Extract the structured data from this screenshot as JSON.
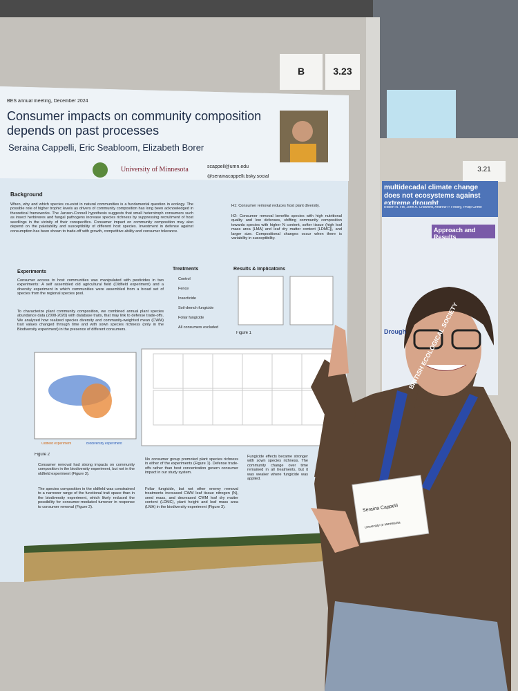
{
  "board_labels": [
    "B",
    "3.23"
  ],
  "poster": {
    "meeting": "BES annual meeting, December 2024",
    "title": "Consumer impacts on community composition depends on past processes",
    "authors": "Seraina Cappelli, Eric Seabloom, Elizabeth Borer",
    "university": "University of Minnesota",
    "contact": [
      "scappell@umn.edu",
      "@serainacappelli.bsky.social"
    ],
    "headings": {
      "background": "Background",
      "experiments": "Experiments",
      "treatments": "Treatments",
      "results": "Results & Implicatoins"
    },
    "background_text": "When, why and which species co-exist in natural communities is a fundamental question in ecology. The possible role of higher trophic levels as drivers of community composition has long been acknowledged in theoretical frameworks. The Janzen-Connell hypothesis suggests that small heterotroph consumers such as insect herbivores and fungal pathogens increase species richness by suppressing recruitment of host seedlings in the vicinity of their conspecifics. Consumer impact on community composition may also depend on the palatability and susceptibility of different host species. Investment in defense against consumption has been shown to trade-off with growth, competitive ability and consumer tolerance.",
    "hypotheses": [
      "H1: Consumer removal reduces host plant diversity.",
      "H2: Consumer removal benefits species with high nutritional quality and low defenses, shifting community composition towards species with higher N content, softer tissue (high leaf mass area [LMA] and leaf dry matter content [LDMC]), and larger size. Compositional changes occur when there is variability in susceptibility."
    ],
    "experiments_text": [
      "Consumer access to host communities was manipulated with pesticides in two experiments: A self assembled old agricultural field (Oldfield experiment) and a diversity experiment in which communities were assembled from a broad set of species from the regional species pool.",
      "To characterize plant community composition, we combined annual plant species abundance data (2008-2020) with database traits, that may link to defense trade-offs. We analyzed how realized species diversity and community-weighted mean (CWM) trait values changed through time and with sown species richness (only in the Biodiversity experiment) in the presence of different consumers."
    ],
    "treatments": [
      "Control",
      "Fence",
      "Insecticide",
      "Soil-drench fungicide",
      "Foliar fungicide",
      "All consumers excluded"
    ],
    "figure_labels": [
      "Figure 1",
      "Figure 2"
    ],
    "legend": [
      "Oldfield experiment",
      "Biodiversity experiment"
    ],
    "findings": [
      "Consumer removal had strong impacts on community composition in the biodiversity experiment, but not in the oldfield experiment (Figure 3).",
      "The species composition in the oldfield was constrained to a narrower range of the functional trait space than in the biodiversity experiment, which likely reduced the possibility for consumer-mediated turnover in response to consumer removal (Figure 2).",
      "No consumer group promoted plant species richness in either of the experiments (Figure 1). Defense trade-offs rather than host concentration govern consumer impact in our study system.",
      "Foliar fungicide, but not other enemy removal treatments increased CWM leaf tissue nitrogen (N), seed mass, and decreased CWM leaf dry matter content (LDMC), plant height and leaf mass area (LMA) in the biodiversity experiment (Figure 3).",
      "Fungicide effects became stronger with sown species richness. The community change over time remained in all treatments, but it was weaker where fungicide was applied."
    ]
  },
  "neighbor_poster": {
    "label": "3.21",
    "title": "multidecadal climate change does not ecosystems against extreme drought",
    "authors": "Robert N. Fitt, John A. Crawford, Andrew P. Fridley, Philip Grime",
    "heading": "Approach and Results",
    "side_heading": "Drough"
  },
  "badge": {
    "name": "Seraina Cappelli",
    "affiliation": "University of Minnesota",
    "lanyard": "BRITISH ECOLOGICAL SOCIETY"
  }
}
